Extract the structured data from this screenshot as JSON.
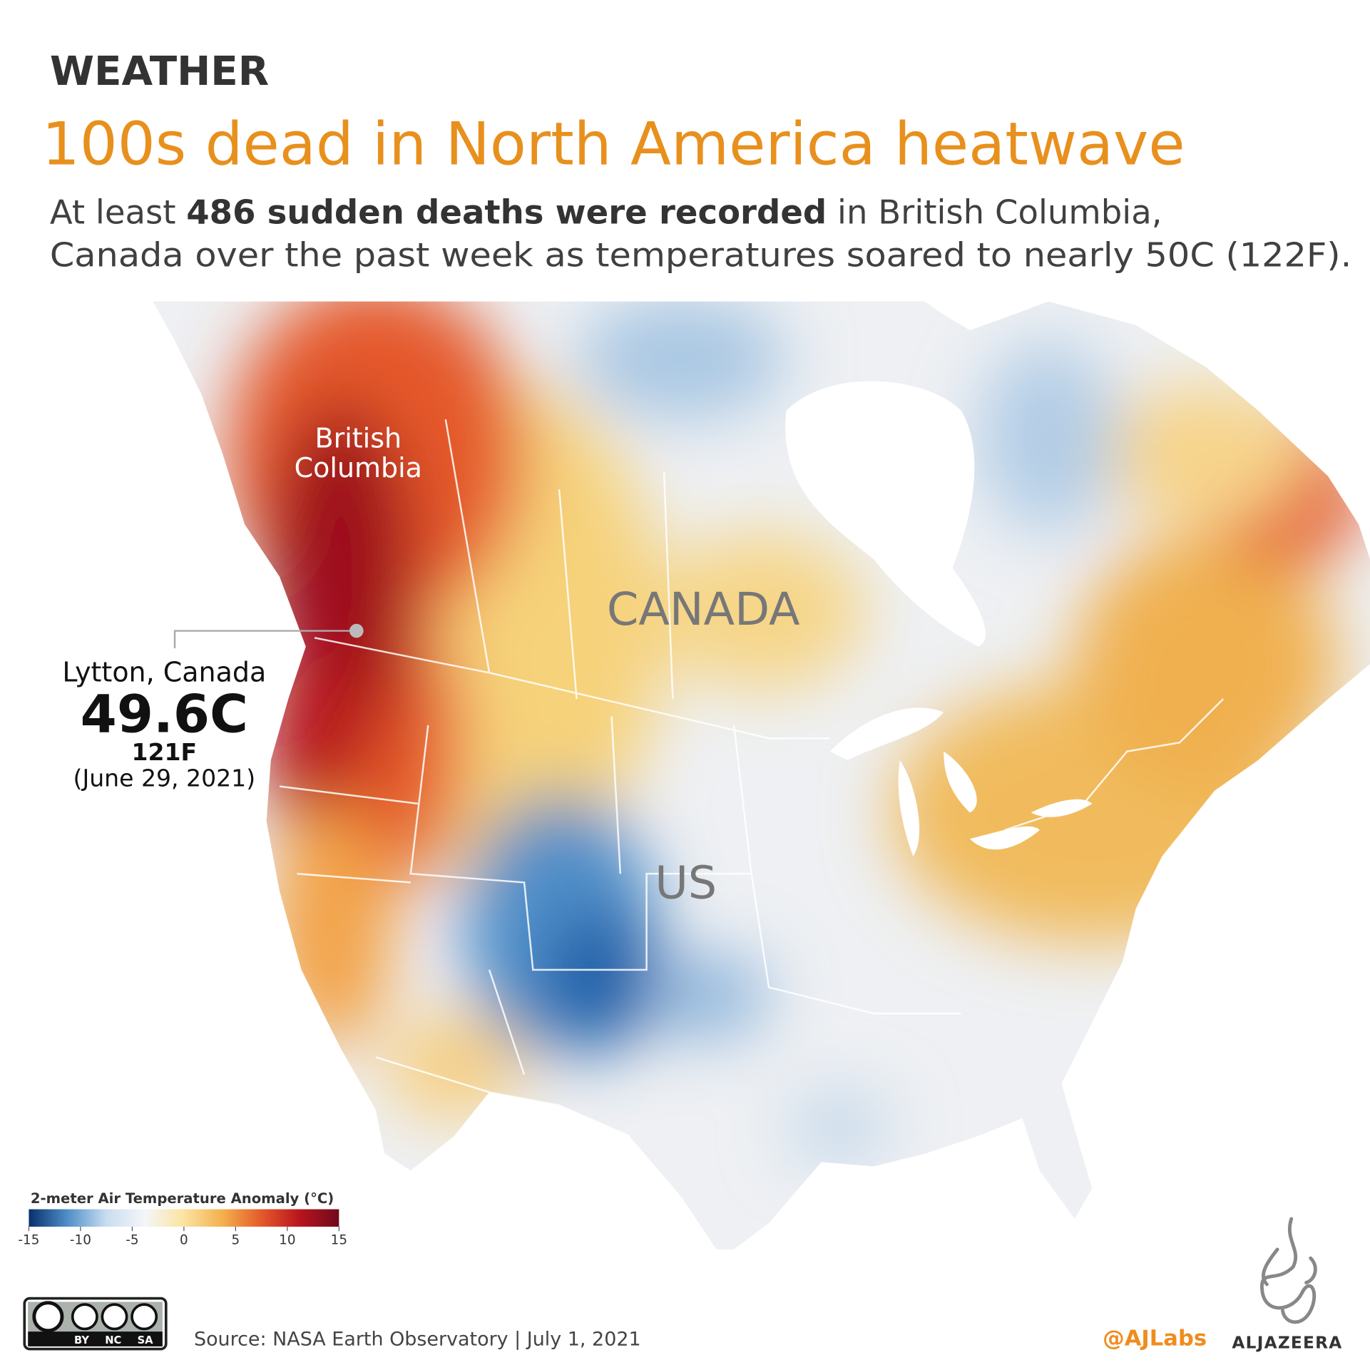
{
  "header": {
    "kicker": "WEATHER",
    "title": "100s dead in North America heatwave",
    "subtitle": {
      "line1_start": "At least ",
      "line1_bold": "486 sudden deaths were recorded",
      "line1_end": " in British Columbia,",
      "line2": "Canada over the past week as temperatures soared to nearly 50C (122F)."
    }
  },
  "map": {
    "labels": {
      "province_line1": "British",
      "province_line2": "Columbia",
      "country_north": "CANADA",
      "country_south": "US"
    },
    "annotation": {
      "place": "Lytton, Canada",
      "celsius": "49.6C",
      "fahrenheit": "121F",
      "date": "(June 29, 2021)"
    },
    "legend": {
      "title": "2-meter Air Temperature Anomaly (°C)",
      "lim": [
        -15,
        15
      ],
      "ticks": [
        -15,
        -10,
        -5,
        0,
        5,
        10,
        15
      ],
      "colors": [
        "#08306b",
        "#4f8fc9",
        "#c9ddef",
        "#f4f6f8",
        "#fbe3a0",
        "#f3b04e",
        "#e5592a",
        "#b8141f",
        "#6e0a1b"
      ]
    }
  },
  "footer": {
    "license": "BY NC SA",
    "source": "Source: NASA Earth Observatory | July 1, 2021",
    "handle": "@AJLabs",
    "brand": "ALJAZEERA"
  }
}
